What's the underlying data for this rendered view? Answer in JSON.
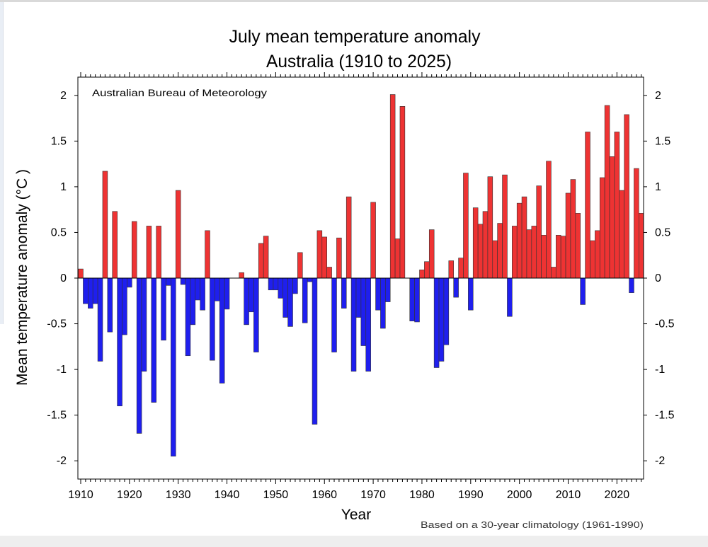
{
  "colors": {
    "positive": "#ee3333",
    "negative": "#1f1fee",
    "bar_stroke": "#333333",
    "axis": "#000000"
  },
  "chart_data": {
    "type": "bar",
    "title": "July mean temperature anomaly",
    "subtitle": "Australia (1910 to 2025)",
    "credit": "Australian Bureau of Meteorology",
    "xlabel": "Year",
    "ylabel": "Mean temperature anomaly (°C )",
    "footnote": "Based on a 30-year climatology (1961-1990)",
    "xlim": [
      1910,
      2025
    ],
    "ylim": [
      -2.2,
      2.2
    ],
    "x_ticks": [
      1910,
      1920,
      1930,
      1940,
      1950,
      1960,
      1970,
      1980,
      1990,
      2000,
      2010,
      2020
    ],
    "x_tick_labels": [
      "1910",
      "1920",
      "1930",
      "1940",
      "1950",
      "1960",
      "1970",
      "1980",
      "1990",
      "2000",
      "2010",
      "2020"
    ],
    "y_ticks": [
      -2,
      -1.5,
      -1,
      -0.5,
      0,
      0.5,
      1,
      1.5,
      2
    ],
    "y_tick_labels": [
      "-2",
      "-1.5",
      "-1",
      "-0.5",
      "0",
      "0.5",
      "1",
      "1.5",
      "2"
    ],
    "grid": false,
    "start_year": 1910,
    "values": [
      0.1,
      -0.28,
      -0.33,
      -0.28,
      -0.91,
      1.17,
      -0.59,
      0.73,
      -1.4,
      -0.62,
      -0.1,
      0.62,
      -1.7,
      -1.02,
      0.57,
      -1.36,
      0.57,
      -0.68,
      -0.08,
      -1.95,
      0.96,
      -0.07,
      -0.85,
      -0.51,
      -0.24,
      -0.35,
      0.52,
      -0.9,
      -0.25,
      -1.15,
      -0.34,
      0.0,
      0.0,
      0.06,
      -0.51,
      -0.37,
      -0.81,
      0.38,
      0.46,
      -0.13,
      -0.13,
      -0.22,
      -0.43,
      -0.53,
      -0.17,
      0.28,
      -0.49,
      -0.04,
      -1.6,
      0.52,
      0.45,
      0.12,
      -0.81,
      0.44,
      -0.33,
      0.89,
      -1.02,
      -0.43,
      -0.74,
      -1.02,
      0.83,
      -0.35,
      -0.55,
      -0.26,
      2.01,
      0.43,
      1.88,
      0.0,
      -0.47,
      -0.48,
      0.09,
      0.18,
      0.53,
      -0.98,
      -0.91,
      -0.73,
      0.19,
      -0.21,
      0.22,
      1.15,
      -0.35,
      0.77,
      0.59,
      0.73,
      1.11,
      0.41,
      0.6,
      1.13,
      -0.42,
      0.57,
      0.82,
      0.89,
      0.53,
      0.57,
      1.01,
      0.47,
      1.28,
      0.12,
      0.47,
      0.46,
      0.93,
      1.08,
      0.71,
      -0.29,
      1.6,
      0.41,
      0.52,
      1.1,
      1.89,
      1.33,
      1.6,
      0.96,
      1.79,
      -0.16,
      1.2,
      0.71
    ]
  }
}
